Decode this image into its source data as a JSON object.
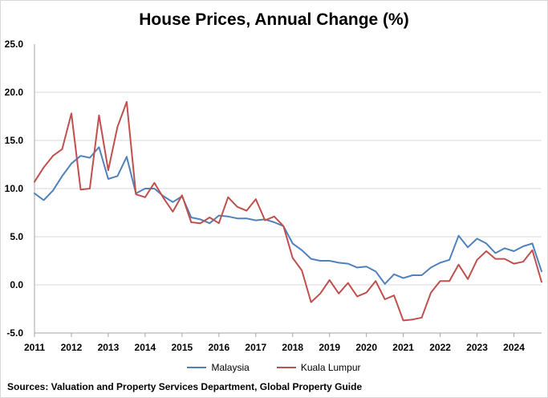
{
  "chart_data": {
    "type": "line",
    "title": "House Prices, Annual Change (%)",
    "xlabel": "",
    "ylabel": "",
    "x_ticks": [
      "2011",
      "2012",
      "2013",
      "2014",
      "2015",
      "2016",
      "2017",
      "2018",
      "2019",
      "2020",
      "2021",
      "2022",
      "2023",
      "2024"
    ],
    "y_ticks": [
      "25.0",
      "20.0",
      "15.0",
      "10.0",
      "5.0",
      "0.0",
      "-5.0"
    ],
    "xlim": [
      2011.0,
      2024.75
    ],
    "ylim": [
      -5,
      25
    ],
    "grid": true,
    "legend_position": "bottom",
    "x": [
      2011.0,
      2011.25,
      2011.5,
      2011.75,
      2012.0,
      2012.25,
      2012.5,
      2012.75,
      2013.0,
      2013.25,
      2013.5,
      2013.75,
      2014.0,
      2014.25,
      2014.5,
      2014.75,
      2015.0,
      2015.25,
      2015.5,
      2015.75,
      2016.0,
      2016.25,
      2016.5,
      2016.75,
      2017.0,
      2017.25,
      2017.5,
      2017.75,
      2018.0,
      2018.25,
      2018.5,
      2018.75,
      2019.0,
      2019.25,
      2019.5,
      2019.75,
      2020.0,
      2020.25,
      2020.5,
      2020.75,
      2021.0,
      2021.25,
      2021.5,
      2021.75,
      2022.0,
      2022.25,
      2022.5,
      2022.75,
      2023.0,
      2023.25,
      2023.5,
      2023.75,
      2024.0,
      2024.25,
      2024.5,
      2024.75
    ],
    "series": [
      {
        "name": "Malaysia",
        "color": "#4f81bd",
        "values": [
          9.5,
          8.8,
          9.8,
          11.3,
          12.6,
          13.4,
          13.2,
          14.3,
          11.0,
          11.3,
          13.3,
          9.5,
          10.0,
          10.0,
          9.2,
          8.6,
          9.2,
          7.0,
          6.8,
          6.4,
          7.2,
          7.1,
          6.9,
          6.9,
          6.7,
          6.8,
          6.5,
          6.1,
          4.3,
          3.6,
          2.7,
          2.5,
          2.5,
          2.3,
          2.2,
          1.8,
          1.9,
          1.4,
          0.1,
          1.1,
          0.7,
          1.0,
          1.0,
          1.8,
          2.3,
          2.6,
          5.1,
          3.9,
          4.8,
          4.3,
          3.3,
          3.8,
          3.5,
          4.0,
          4.3,
          1.4
        ]
      },
      {
        "name": "Kuala Lumpur",
        "color": "#c0504d",
        "values": [
          10.7,
          12.2,
          13.4,
          14.1,
          17.8,
          9.9,
          10.0,
          17.6,
          11.9,
          16.4,
          19.0,
          9.4,
          9.1,
          10.6,
          9.0,
          7.6,
          9.3,
          6.5,
          6.4,
          7.0,
          6.4,
          9.1,
          8.1,
          7.7,
          8.9,
          6.7,
          7.1,
          6.1,
          2.8,
          1.5,
          -1.8,
          -0.9,
          0.5,
          -0.9,
          0.2,
          -1.2,
          -0.8,
          0.4,
          -1.5,
          -1.1,
          -3.7,
          -3.6,
          -3.4,
          -0.8,
          0.4,
          0.4,
          2.1,
          0.6,
          2.6,
          3.5,
          2.7,
          2.7,
          2.2,
          2.4,
          3.6,
          0.3
        ]
      }
    ]
  },
  "source_note": "Sources: Valuation and Property Services Department, Global Property Guide"
}
